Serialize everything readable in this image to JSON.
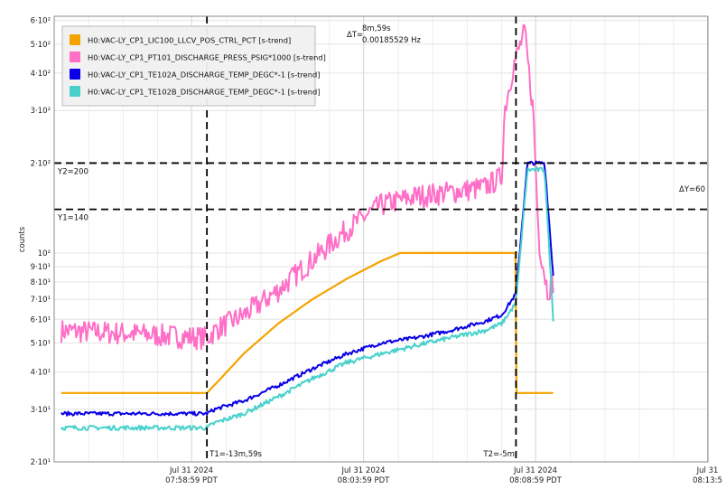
{
  "chart_data": {
    "type": "line",
    "ylabel": "counts",
    "y_scale": "log",
    "ylim": [
      20,
      620
    ],
    "xlim": [
      "2024-07-31 07:55:12",
      "2024-07-31 08:13:59"
    ],
    "y_ticks": [
      {
        "value": 600,
        "label": "6·10²"
      },
      {
        "value": 500,
        "label": "5·10²"
      },
      {
        "value": 400,
        "label": "4·10²"
      },
      {
        "value": 300,
        "label": "3·10²"
      },
      {
        "value": 200,
        "label": "2·10²"
      },
      {
        "value": 100,
        "label": "10²"
      },
      {
        "value": 90,
        "label": "9·10¹"
      },
      {
        "value": 80,
        "label": "8·10¹"
      },
      {
        "value": 70,
        "label": "7·10¹"
      },
      {
        "value": 60,
        "label": "6·10¹"
      },
      {
        "value": 50,
        "label": "5·10¹"
      },
      {
        "value": 40,
        "label": "4·10¹"
      },
      {
        "value": 30,
        "label": "3·10¹"
      },
      {
        "value": 20,
        "label": "2·10¹"
      }
    ],
    "x_ticks": [
      {
        "time": "2024-07-31 07:58:59",
        "line1": "Jul 31 2024",
        "line2": "07:58:59 PDT"
      },
      {
        "time": "2024-07-31 08:03:59",
        "line1": "Jul 31 2024",
        "line2": "08:03:59 PDT"
      },
      {
        "time": "2024-07-31 08:08:59",
        "line1": "Jul 31 2024",
        "line2": "08:08:59 PDT"
      },
      {
        "time": "2024-07-31 08:13:59",
        "line1": "Jul 31",
        "line2": "08:13:5"
      }
    ],
    "cursors": {
      "t1": {
        "time": "2024-07-31 07:59:26",
        "label": "T1=-13m,59s"
      },
      "t2": {
        "time": "2024-07-31 08:08:25",
        "label": "T2=-5m"
      },
      "y1": {
        "value": 140,
        "label": "Y1=140"
      },
      "y2": {
        "value": 200,
        "label": "Y2=200"
      },
      "delta_t": {
        "label": "ΔT=",
        "value1": "8m,59s",
        "value2": "0.00185529 Hz"
      },
      "delta_y": {
        "label": "ΔY=60"
      }
    },
    "series": [
      {
        "name": "H0:VAC-LY_CP1_LIC100_LLCV_POS_CTRL_PCT [s-trend]",
        "color": "#f5a300",
        "points": [
          [
            "2024-07-31 07:55:12",
            34
          ],
          [
            "2024-07-31 07:59:26",
            34
          ],
          [
            "2024-07-31 07:59:50",
            38
          ],
          [
            "2024-07-31 08:00:30",
            46
          ],
          [
            "2024-07-31 08:01:30",
            58
          ],
          [
            "2024-07-31 08:02:30",
            70
          ],
          [
            "2024-07-31 08:03:30",
            82
          ],
          [
            "2024-07-31 08:04:30",
            94
          ],
          [
            "2024-07-31 08:05:03",
            100
          ],
          [
            "2024-07-31 08:08:25",
            100
          ],
          [
            "2024-07-31 08:08:26",
            34
          ],
          [
            "2024-07-31 08:09:30",
            34
          ]
        ]
      },
      {
        "name": "H0:VAC-LY_CP1_PT101_DISCHARGE_PRESS_PSIG*1000 [s-trend]",
        "color": "#ff6ec7",
        "points": [
          [
            "2024-07-31 07:55:12",
            55
          ],
          [
            "2024-07-31 07:57:00",
            54
          ],
          [
            "2024-07-31 07:59:26",
            52
          ],
          [
            "2024-07-31 07:59:45",
            56
          ],
          [
            "2024-07-31 08:00:30",
            62
          ],
          [
            "2024-07-31 08:01:30",
            75
          ],
          [
            "2024-07-31 08:02:30",
            95
          ],
          [
            "2024-07-31 08:03:30",
            120
          ],
          [
            "2024-07-31 08:04:30",
            145
          ],
          [
            "2024-07-31 08:05:30",
            155
          ],
          [
            "2024-07-31 08:06:30",
            160
          ],
          [
            "2024-07-31 08:07:30",
            166
          ],
          [
            "2024-07-31 08:08:00",
            180
          ],
          [
            "2024-07-31 08:08:05",
            300
          ],
          [
            "2024-07-31 08:08:20",
            420
          ],
          [
            "2024-07-31 08:08:40",
            550
          ],
          [
            "2024-07-31 08:08:55",
            300
          ],
          [
            "2024-07-31 08:09:05",
            110
          ],
          [
            "2024-07-31 08:09:20",
            75
          ],
          [
            "2024-07-31 08:09:30",
            80
          ]
        ]
      },
      {
        "name": "H0:VAC-LY_CP1_TE102A_DISCHARGE_TEMP_DEGC*-1 [s-trend]",
        "color": "#0a00e8",
        "points": [
          [
            "2024-07-31 07:55:12",
            29
          ],
          [
            "2024-07-31 07:59:26",
            29
          ],
          [
            "2024-07-31 07:59:40",
            30
          ],
          [
            "2024-07-31 08:00:30",
            32
          ],
          [
            "2024-07-31 08:01:30",
            36
          ],
          [
            "2024-07-31 08:02:30",
            41
          ],
          [
            "2024-07-31 08:03:30",
            46
          ],
          [
            "2024-07-31 08:04:30",
            50
          ],
          [
            "2024-07-31 08:05:30",
            52
          ],
          [
            "2024-07-31 08:06:30",
            55
          ],
          [
            "2024-07-31 08:07:30",
            59
          ],
          [
            "2024-07-31 08:08:00",
            62
          ],
          [
            "2024-07-31 08:08:25",
            73
          ],
          [
            "2024-07-31 08:08:45",
            200
          ],
          [
            "2024-07-31 08:09:15",
            200
          ],
          [
            "2024-07-31 08:09:30",
            84
          ]
        ]
      },
      {
        "name": "H0:VAC-LY_CP1_TE102B_DISCHARGE_TEMP_DEGC*-1 [s-trend]",
        "color": "#48d1cc",
        "points": [
          [
            "2024-07-31 07:55:12",
            26
          ],
          [
            "2024-07-31 07:59:26",
            26
          ],
          [
            "2024-07-31 07:59:40",
            27
          ],
          [
            "2024-07-31 08:00:30",
            29
          ],
          [
            "2024-07-31 08:01:30",
            33
          ],
          [
            "2024-07-31 08:02:30",
            38
          ],
          [
            "2024-07-31 08:03:30",
            43
          ],
          [
            "2024-07-31 08:04:30",
            46
          ],
          [
            "2024-07-31 08:05:30",
            49
          ],
          [
            "2024-07-31 08:06:30",
            52
          ],
          [
            "2024-07-31 08:07:30",
            55
          ],
          [
            "2024-07-31 08:08:00",
            58
          ],
          [
            "2024-07-31 08:08:25",
            68
          ],
          [
            "2024-07-31 08:08:45",
            190
          ],
          [
            "2024-07-31 08:09:15",
            190
          ],
          [
            "2024-07-31 08:09:30",
            60
          ]
        ]
      }
    ],
    "grid": true,
    "legend_position": "top-left"
  }
}
